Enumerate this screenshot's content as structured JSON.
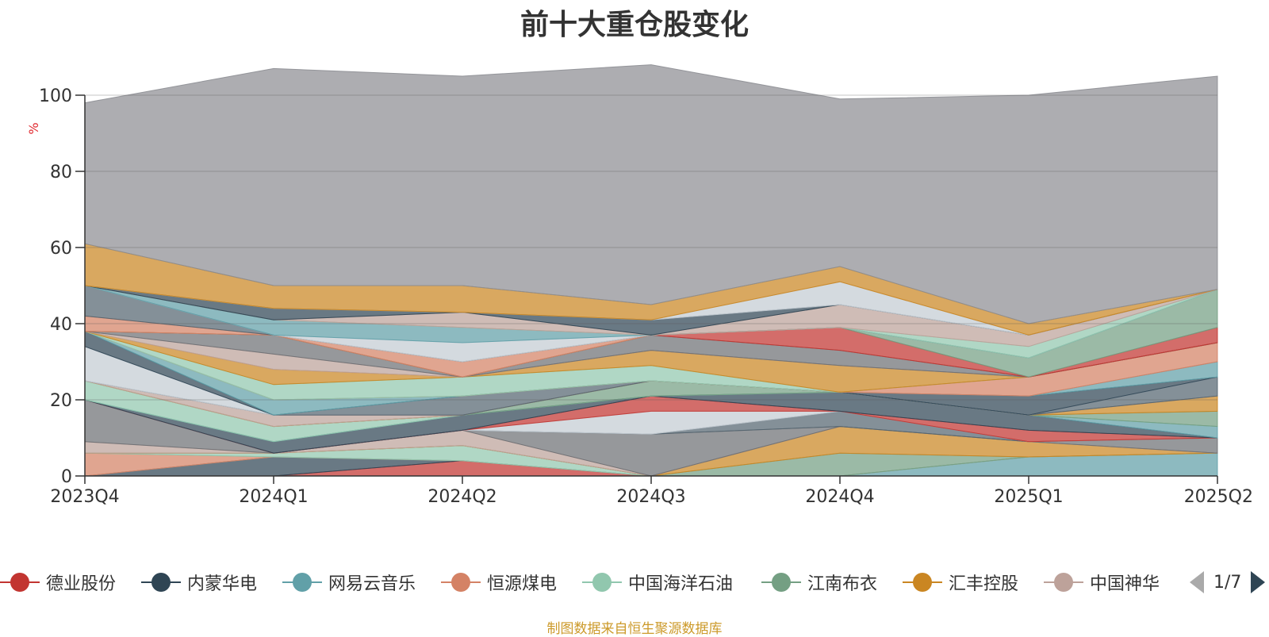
{
  "title": "前十大重仓股变化",
  "source_note": "制图数据来自恒生聚源数据库",
  "pager": {
    "text": "1/7",
    "prev_icon": "triangle-left-icon",
    "next_icon": "triangle-right-icon"
  },
  "legend": [
    {
      "label": "德业股份",
      "color": "#c23531"
    },
    {
      "label": "内蒙华电",
      "color": "#2f4554"
    },
    {
      "label": "网易云音乐",
      "color": "#61a0a8"
    },
    {
      "label": "恒源煤电",
      "color": "#d48265"
    },
    {
      "label": "中国海洋石油",
      "color": "#91c7ae"
    },
    {
      "label": "江南布衣",
      "color": "#749f83"
    },
    {
      "label": "汇丰控股",
      "color": "#ca8622"
    },
    {
      "label": "中国神华",
      "color": "#bda29a"
    }
  ],
  "chart_data": {
    "type": "area",
    "stacked": true,
    "title": "前十大重仓股变化",
    "ylabel": "%",
    "ylim": [
      0,
      100
    ],
    "yticks": [
      0,
      20,
      40,
      60,
      80,
      100
    ],
    "categories": [
      "2023Q4",
      "2024Q1",
      "2024Q2",
      "2024Q3",
      "2024Q4",
      "2025Q1",
      "2025Q2"
    ],
    "grid": true,
    "legend_position": "bottom",
    "series": [
      {
        "color": "#c23531",
        "values": [
          0,
          0,
          4,
          0,
          0,
          0,
          0
        ]
      },
      {
        "color": "#2f4554",
        "values": [
          0,
          5,
          0,
          0,
          0,
          0,
          0
        ]
      },
      {
        "color": "#61a0a8",
        "values": [
          0,
          0,
          0,
          0,
          0,
          5,
          6
        ]
      },
      {
        "color": "#d48265",
        "values": [
          6,
          0,
          0,
          0,
          0,
          0,
          0
        ]
      },
      {
        "color": "#91c7ae",
        "values": [
          0,
          1,
          4,
          0,
          0,
          0,
          0
        ]
      },
      {
        "color": "#749f83",
        "values": [
          0,
          0,
          0,
          0,
          6,
          0,
          0
        ]
      },
      {
        "color": "#ca8622",
        "values": [
          0,
          0,
          0,
          0,
          7,
          4,
          0
        ]
      },
      {
        "color": "#bda29a",
        "values": [
          3,
          0,
          4,
          0,
          0,
          0,
          0
        ]
      },
      {
        "color": "#6e7074",
        "values": [
          11,
          0,
          0,
          11,
          0,
          0,
          4
        ]
      },
      {
        "color": "#546570",
        "values": [
          0,
          0,
          0,
          0,
          4,
          0,
          0
        ]
      },
      {
        "color": "#c4ccd3",
        "values": [
          0,
          0,
          0,
          6,
          0,
          0,
          0
        ]
      },
      {
        "color": "#c23531",
        "values": [
          0,
          0,
          0,
          4,
          0,
          3,
          0
        ]
      },
      {
        "color": "#2f4554",
        "values": [
          0,
          3,
          4,
          0,
          5,
          4,
          0
        ]
      },
      {
        "color": "#61a0a8",
        "values": [
          0,
          0,
          0,
          0,
          0,
          0,
          3
        ]
      },
      {
        "color": "#91c7ae",
        "values": [
          5,
          4,
          0,
          0,
          0,
          0,
          0
        ]
      },
      {
        "color": "#749f83",
        "values": [
          0,
          0,
          0,
          4,
          0,
          0,
          4
        ]
      },
      {
        "color": "#ca8622",
        "values": [
          0,
          0,
          0,
          0,
          0,
          0,
          4
        ]
      },
      {
        "color": "#bda29a",
        "values": [
          0,
          3,
          0,
          0,
          0,
          0,
          0
        ]
      },
      {
        "color": "#546570",
        "values": [
          0,
          0,
          5,
          0,
          0,
          0,
          5
        ]
      },
      {
        "color": "#c4ccd3",
        "values": [
          9,
          0,
          0,
          0,
          0,
          0,
          0
        ]
      },
      {
        "color": "#2f4554",
        "values": [
          4,
          0,
          0,
          0,
          0,
          5,
          0
        ]
      },
      {
        "color": "#61a0a8",
        "values": [
          0,
          4,
          0,
          0,
          0,
          0,
          4
        ]
      },
      {
        "color": "#d48265",
        "values": [
          0,
          0,
          0,
          0,
          0,
          5,
          5
        ]
      },
      {
        "color": "#91c7ae",
        "values": [
          0,
          4,
          5,
          4,
          0,
          0,
          0
        ]
      },
      {
        "color": "#ca8622",
        "values": [
          0,
          4,
          0,
          4,
          7,
          0,
          0
        ]
      },
      {
        "color": "#bda29a",
        "values": [
          0,
          4,
          0,
          0,
          0,
          0,
          0
        ]
      },
      {
        "color": "#6e7074",
        "values": [
          0,
          5,
          0,
          4,
          4,
          0,
          0
        ]
      },
      {
        "color": "#c23531",
        "values": [
          0,
          0,
          0,
          0,
          6,
          0,
          4
        ]
      },
      {
        "color": "#749f83",
        "values": [
          0,
          0,
          0,
          0,
          0,
          5,
          10
        ]
      },
      {
        "color": "#d48265",
        "values": [
          4,
          0,
          4,
          0,
          0,
          0,
          0
        ]
      },
      {
        "color": "#546570",
        "values": [
          8,
          0,
          0,
          0,
          0,
          0,
          0
        ]
      },
      {
        "color": "#c4ccd3",
        "values": [
          0,
          0,
          5,
          0,
          0,
          0,
          0
        ]
      },
      {
        "color": "#61a0a8",
        "values": [
          0,
          4,
          4,
          0,
          0,
          0,
          0
        ]
      },
      {
        "color": "#91c7ae",
        "values": [
          0,
          0,
          0,
          0,
          0,
          3,
          0
        ]
      },
      {
        "color": "#bda29a",
        "values": [
          0,
          0,
          4,
          0,
          6,
          3,
          0
        ]
      },
      {
        "color": "#2f4554",
        "values": [
          0,
          3,
          0,
          4,
          0,
          0,
          0
        ]
      },
      {
        "color": "#c4ccd3",
        "values": [
          0,
          0,
          0,
          0,
          6,
          0,
          0
        ]
      },
      {
        "color": "#ca8622",
        "values": [
          11,
          6,
          7,
          4,
          4,
          3,
          0
        ]
      },
      {
        "color": "#8d8e93",
        "values": [
          37,
          57,
          55,
          63,
          44,
          60,
          56
        ]
      }
    ]
  }
}
